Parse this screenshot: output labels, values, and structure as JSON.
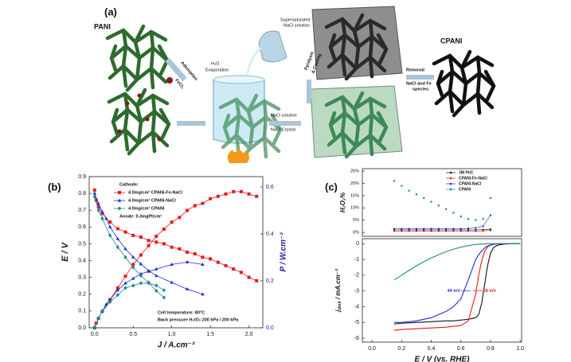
{
  "diagram": {
    "panel_label": "(a)",
    "pani": "PANI",
    "adsorption": "Adsorption",
    "fecl3": "FeCl₃",
    "h2o": "H₂O",
    "evaporation": "Evaporation",
    "supersaturated": "Supersaturated",
    "nacl_solution_top": "NaCl solution",
    "nacl_solution": "NaCl solution",
    "nacl_crystal": "NaCl Crystal",
    "pyrolysis": "Pyrolysis",
    "cooling": "& Cooling",
    "removal": "Removal",
    "removal_species_1": "NaCl and Fe",
    "removal_species_2": "species",
    "cpani": "CPANI"
  },
  "chart_data": [
    {
      "type": "line",
      "panel_label": "(b)",
      "xlabel": "J / A.cm⁻²",
      "ylabel": "E / V",
      "y2label": "P / W.cm⁻²",
      "xlim": [
        -0.07,
        2.18
      ],
      "xticks": [
        {
          "value": 0,
          "label": "0.0"
        },
        0.5,
        {
          "value": 1,
          "label": "1.0"
        },
        1.5,
        {
          "value": 2,
          "label": "2.0"
        }
      ],
      "ylim": [
        0,
        0.9
      ],
      "yticks": [
        {
          "value": 0,
          "label": "0.0"
        },
        0.1,
        0.2,
        0.3,
        0.4,
        0.5,
        0.6,
        0.7,
        0.8,
        0.9
      ],
      "y2lim": [
        0,
        0.644
      ],
      "y2ticks": [
        {
          "value": 0,
          "label": "0.0"
        },
        0.2,
        0.4,
        0.6
      ],
      "legend_title": "Cathode:",
      "annotations": [
        "Anode: 0.3mgPt/cm²",
        "Cell temperature: 80°C",
        "Back pressure H₂/O₂ 200 kPa / 200 kPa"
      ],
      "series": [
        {
          "name": "4.0mg/cm² CPANI-Fe-NaCl",
          "color": "#e8191c",
          "marker": "square",
          "x": [
            0,
            0.02,
            0.05,
            0.1,
            0.2,
            0.3,
            0.4,
            0.5,
            0.6,
            0.7,
            0.8,
            0.9,
            1.0,
            1.1,
            1.2,
            1.3,
            1.4,
            1.5,
            1.6,
            1.7,
            1.8,
            1.9,
            2.0,
            2.1
          ],
          "values": [
            0.82,
            0.76,
            0.72,
            0.68,
            0.63,
            0.59,
            0.57,
            0.55,
            0.54,
            0.52,
            0.51,
            0.5,
            0.48,
            0.47,
            0.45,
            0.44,
            0.42,
            0.41,
            0.39,
            0.37,
            0.35,
            0.33,
            0.3,
            0.28
          ],
          "y2_values": [
            0,
            0.02,
            0.04,
            0.07,
            0.12,
            0.17,
            0.22,
            0.27,
            0.31,
            0.35,
            0.39,
            0.42,
            0.45,
            0.47,
            0.5,
            0.52,
            0.53,
            0.55,
            0.56,
            0.57,
            0.58,
            0.58,
            0.57,
            0.56
          ]
        },
        {
          "name": "4.0mg/cm² CPANI-NaCl",
          "color": "#1c2bd0",
          "marker": "triangle",
          "x": [
            0,
            0.05,
            0.1,
            0.15,
            0.2,
            0.3,
            0.4,
            0.5,
            0.6,
            0.7,
            0.8,
            1.0,
            1.2,
            1.4
          ],
          "values": [
            0.8,
            0.74,
            0.69,
            0.65,
            0.6,
            0.53,
            0.47,
            0.42,
            0.38,
            0.34,
            0.31,
            0.27,
            0.23,
            0.2
          ],
          "y2_values": [
            0,
            0.04,
            0.07,
            0.1,
            0.12,
            0.16,
            0.19,
            0.21,
            0.23,
            0.24,
            0.25,
            0.27,
            0.28,
            0.27
          ]
        },
        {
          "name": "4.0mg/cm² CPANI",
          "color": "#1f8a8a",
          "marker": "diamond",
          "x": [
            0,
            0.05,
            0.1,
            0.2,
            0.3,
            0.4,
            0.5,
            0.6,
            0.7,
            0.8,
            0.9
          ],
          "values": [
            0.78,
            0.7,
            0.65,
            0.55,
            0.48,
            0.42,
            0.36,
            0.31,
            0.27,
            0.22,
            0.18
          ],
          "y2_values": [
            0,
            0.04,
            0.07,
            0.11,
            0.14,
            0.17,
            0.18,
            0.19,
            0.19,
            0.18,
            0.16
          ]
        }
      ]
    },
    {
      "type": "line",
      "panel_label": "(c)",
      "ylabel": "H₂O₂%",
      "xlim": [
        -0.065,
        1.01
      ],
      "ylim": [
        -1.6,
        26
      ],
      "yticks": [
        {
          "value": 0,
          "label": "0%"
        },
        {
          "value": 5,
          "label": "5%"
        },
        {
          "value": 10,
          "label": "10%"
        },
        {
          "value": 15,
          "label": "15%"
        },
        {
          "value": 20,
          "label": "20%"
        },
        {
          "value": 25,
          "label": "25%"
        }
      ],
      "x": [
        0.15,
        0.2,
        0.25,
        0.3,
        0.35,
        0.4,
        0.45,
        0.5,
        0.55,
        0.6,
        0.65,
        0.7,
        0.75,
        0.8
      ],
      "series": [
        {
          "name": "JM Pt/C",
          "color": "#111111",
          "values": [
            1,
            1,
            1,
            1,
            1,
            1,
            1,
            1,
            1,
            1,
            1,
            1,
            1.1,
            1.3
          ]
        },
        {
          "name": "CPANI-Fe-NaCl",
          "color": "#e8191c",
          "values": [
            0.5,
            0.5,
            0.5,
            0.5,
            0.5,
            0.5,
            0.5,
            0.5,
            0.5,
            0.5,
            0.5,
            0.5,
            0.6,
            0.8
          ]
        },
        {
          "name": "CPANI-NaCl",
          "color": "#1c2bd0",
          "values": [
            1.5,
            1.5,
            1.5,
            1.5,
            1.5,
            1.5,
            1.5,
            1.5,
            1.5,
            1.5,
            1.6,
            1.8,
            2.5,
            7
          ]
        },
        {
          "name": "CPANI",
          "color": "#1f8a8a",
          "values": [
            21,
            19,
            17,
            15.5,
            14,
            12.5,
            11,
            9.5,
            8,
            6.5,
            5.5,
            5,
            5.5,
            14
          ]
        }
      ]
    },
    {
      "type": "line",
      "xlabel": "E / V (vs. RHE)",
      "ylabel": "j",
      "ylabel_sub": "disk",
      "ylabel_unit": " / mA.cm⁻²",
      "xlim": [
        -0.065,
        1.01
      ],
      "xticks": [
        {
          "value": 0,
          "label": "0.0"
        },
        0.2,
        0.4,
        0.6,
        0.8,
        {
          "value": 1,
          "label": "1.0"
        }
      ],
      "ylim": [
        -6.25,
        0.32
      ],
      "yticks": [
        0,
        -1,
        -2,
        -3,
        -4,
        -5,
        -6
      ],
      "annotations": [
        {
          "text": "44 mV",
          "color": "#1c2bd0"
        },
        {
          "text": "58 mV",
          "color": "#e8191c"
        }
      ],
      "x": [
        0.15,
        0.2,
        0.3,
        0.4,
        0.5,
        0.55,
        0.6,
        0.65,
        0.7,
        0.72,
        0.74,
        0.76,
        0.78,
        0.8,
        0.82,
        0.85,
        0.9,
        0.95,
        1.0
      ],
      "series": [
        {
          "color": "#111111",
          "values": [
            -5.1,
            -5.05,
            -5.0,
            -4.95,
            -4.9,
            -4.9,
            -4.85,
            -4.8,
            -4.7,
            -4.5,
            -3.8,
            -2.6,
            -1.4,
            -0.6,
            -0.25,
            -0.08,
            -0.02,
            0,
            0
          ]
        },
        {
          "color": "#e8191c",
          "values": [
            -5.5,
            -5.45,
            -5.4,
            -5.35,
            -5.3,
            -5.25,
            -5.2,
            -4.9,
            -3.2,
            -2.0,
            -1.1,
            -0.5,
            -0.2,
            -0.08,
            -0.03,
            0,
            0,
            0,
            0
          ]
        },
        {
          "color": "#1c2bd0",
          "values": [
            -5.0,
            -5.0,
            -4.9,
            -4.7,
            -4.3,
            -4.0,
            -3.5,
            -2.3,
            -1.0,
            -0.7,
            -0.45,
            -0.28,
            -0.15,
            -0.08,
            -0.04,
            -0.01,
            0,
            0,
            0
          ]
        },
        {
          "color": "#1f8a8a",
          "values": [
            -2.3,
            -2.0,
            -1.4,
            -0.9,
            -0.5,
            -0.35,
            -0.22,
            -0.12,
            -0.05,
            -0.03,
            -0.02,
            -0.01,
            0,
            0,
            0,
            0,
            0,
            0,
            0
          ]
        }
      ]
    }
  ]
}
